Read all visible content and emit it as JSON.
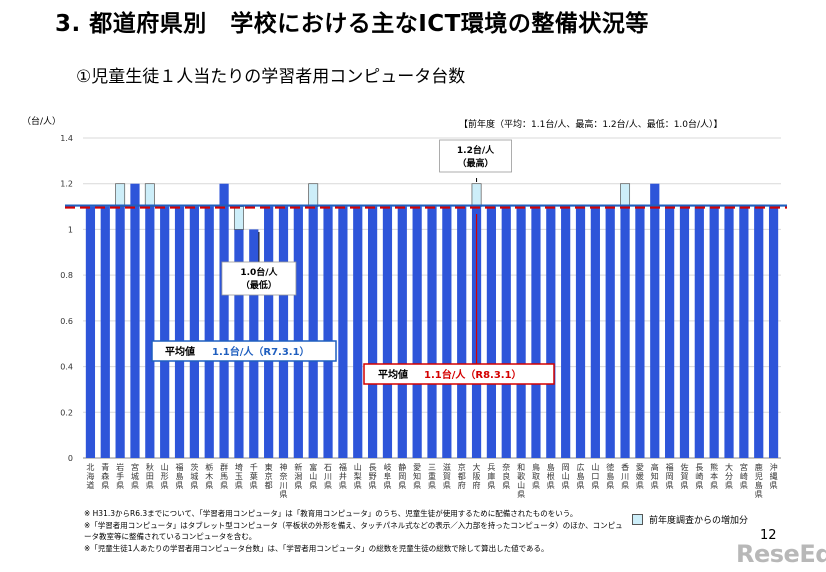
{
  "header": {
    "title": "3. 都道府県別　学校における主なICT環境の整備状況等",
    "subtitle": "①児童生徒１人当たりの学習者用コンピュータ台数"
  },
  "colors": {
    "bar": "#2e55d9",
    "increase": "#cdeef9",
    "prev_avg_line": "#1f5fbf",
    "curr_avg_line": "#d40000",
    "prev_avg_box": "#1f5fbf",
    "curr_avg_box": "#d40000"
  },
  "chart_data": {
    "type": "bar",
    "ylabel": "（台/人）",
    "ylim": [
      0,
      1.4
    ],
    "yticks": [
      0,
      0.2,
      0.4,
      0.6,
      0.8,
      1,
      1.2,
      1.4
    ],
    "ytick_labels": [
      "0",
      "0.2",
      "0.4",
      "0.6",
      "0.8",
      "1",
      "1.2",
      "1.4"
    ],
    "grid": true,
    "categories": [
      "北海道県",
      "青森県",
      "岩手県",
      "宮城県",
      "秋田県",
      "山形県",
      "福島県",
      "茨城県",
      "栃木県",
      "群馬県",
      "埼玉県",
      "千葉県",
      "東京都",
      "神奈川県",
      "新潟県",
      "富山県",
      "石川県",
      "福井県",
      "山梨県",
      "長野県",
      "岐阜県",
      "静岡県",
      "愛知県",
      "三重県",
      "滋賀県",
      "京都府",
      "大阪府",
      "兵庫県",
      "奈良県",
      "和歌山県",
      "鳥取県",
      "島根県",
      "岡山県",
      "広島県",
      "山口県",
      "徳島県",
      "香川県",
      "愛媛県",
      "高知県",
      "福岡県",
      "佐賀県",
      "長崎県",
      "熊本県",
      "大分県",
      "宮崎県",
      "鹿児島県",
      "沖縄県"
    ],
    "category_labels": [
      "北海道",
      "青森県",
      "岩手県",
      "宮城県",
      "秋田県",
      "山形県",
      "福島県",
      "茨城県",
      "栃木県",
      "群馬県",
      "埼玉県",
      "千葉県",
      "東京都",
      "神奈川県",
      "新潟県",
      "富山県",
      "石川県",
      "福井県",
      "山梨県",
      "長野県",
      "岐阜県",
      "静岡県",
      "愛知県",
      "三重県",
      "滋賀県",
      "京都府",
      "大阪府",
      "兵庫県",
      "奈良県",
      "和歌山県",
      "鳥取県",
      "島根県",
      "岡山県",
      "広島県",
      "山口県",
      "徳島県",
      "香川県",
      "愛媛県",
      "高知県",
      "福岡県",
      "佐賀県",
      "長崎県",
      "熊本県",
      "大分県",
      "宮崎県",
      "鹿児島県",
      "沖縄県"
    ],
    "series": [
      {
        "values": [
          1.1,
          1.1,
          1.1,
          1.2,
          1.1,
          1.1,
          1.1,
          1.1,
          1.1,
          1.2,
          1.0,
          1.0,
          1.1,
          1.1,
          1.1,
          1.1,
          1.1,
          1.1,
          1.1,
          1.1,
          1.1,
          1.1,
          1.1,
          1.1,
          1.1,
          1.1,
          1.1,
          1.1,
          1.1,
          1.1,
          1.1,
          1.1,
          1.1,
          1.1,
          1.1,
          1.1,
          1.1,
          1.1,
          1.2,
          1.1,
          1.1,
          1.1,
          1.1,
          1.1,
          1.1,
          1.1,
          1.1
        ]
      },
      {
        "name": "前年度調査からの増加分",
        "values": [
          0,
          0,
          0.1,
          0,
          0.1,
          0,
          0,
          0,
          0,
          0,
          0.1,
          0,
          0,
          0,
          0,
          0.1,
          0,
          0,
          0,
          0,
          0,
          0,
          0,
          0,
          0,
          0,
          0.1,
          0,
          0,
          0,
          0,
          0,
          0,
          0,
          0,
          0,
          0.1,
          0,
          0,
          0,
          0,
          0,
          0,
          0,
          0,
          0,
          0
        ]
      }
    ],
    "avg_prev": 1.1,
    "avg_curr": 1.1,
    "annotations": {
      "max": {
        "line1": "1.2台/人",
        "line2": "（最高）"
      },
      "min": {
        "line1": "1.0台/人",
        "line2": "（最低）"
      },
      "avg_prev_label": "平均値",
      "avg_prev_value": "1.1台/人（R7.3.1）",
      "avg_curr_label": "平均値",
      "avg_curr_value": "1.1台/人（R8.3.1）"
    }
  },
  "unit_label": "（台/人）",
  "prev_year_note": "【前年度（平均：1.1台/人、最高：1.2台/人、最低：1.0台/人）】",
  "legend": {
    "label": "前年度調査からの増加分"
  },
  "footnotes": [
    "※ H31.3からR6.3までについて、「学習者用コンピュータ」は「教育用コンピュータ」のうち、児童生徒が使用するために配備されたものをいう。",
    "※「学習者用コンピュータ」はタブレット型コンピュータ（平板状の外形を備え、タッチパネル式などの表示／入力部を持ったコンピュータ）のほか、コンピュータ教室等に整備されているコンピュータを含む。",
    "※「児童生徒1人あたりの学習者用コンピュータ台数」は、「学習者用コンピュータ」の総数を児童生徒の総数で除して算出した値である。"
  ],
  "page_number": "12",
  "logo": "ReseEd"
}
